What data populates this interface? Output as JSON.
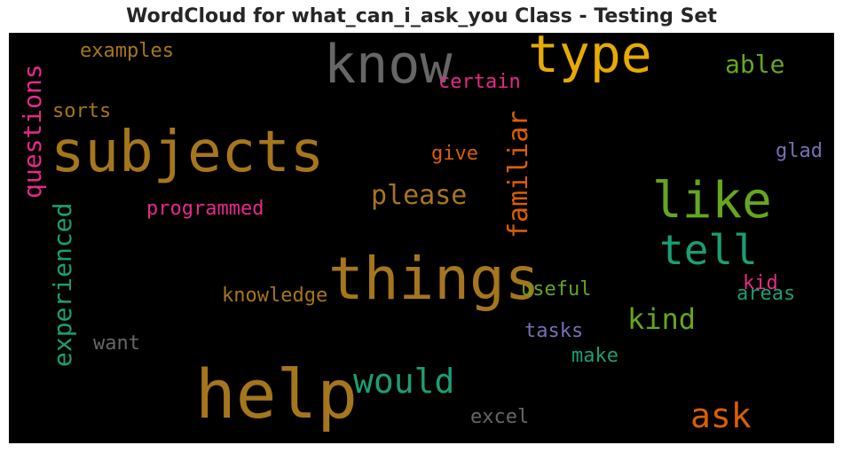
{
  "title": "WordCloud for what_can_i_ask_you Class - Testing Set",
  "words": {
    "help": {
      "text": "help",
      "color": "#a6761d"
    },
    "things": {
      "text": "things",
      "color": "#a6761d"
    },
    "subjects": {
      "text": "subjects",
      "color": "#a6761d"
    },
    "know": {
      "text": "know",
      "color": "#666666"
    },
    "type": {
      "text": "type",
      "color": "#e6ab02"
    },
    "like": {
      "text": "like",
      "color": "#66a61e"
    },
    "tell": {
      "text": "tell",
      "color": "#1b9e77"
    },
    "questions": {
      "text": "questions",
      "color": "#e7298a"
    },
    "experienced": {
      "text": "experienced",
      "color": "#1b9e77"
    },
    "familiar": {
      "text": "familiar",
      "color": "#d95f02"
    },
    "would": {
      "text": "would",
      "color": "#1b9e77"
    },
    "ask": {
      "text": "ask",
      "color": "#d95f02"
    },
    "kind": {
      "text": "kind",
      "color": "#66a61e"
    },
    "please": {
      "text": "please",
      "color": "#a6761d"
    },
    "able": {
      "text": "able",
      "color": "#66a61e"
    },
    "certain": {
      "text": "certain",
      "color": "#e7298a"
    },
    "examples": {
      "text": "examples",
      "color": "#a6761d"
    },
    "sorts": {
      "text": "sorts",
      "color": "#a6761d"
    },
    "give": {
      "text": "give",
      "color": "#d95f02"
    },
    "glad": {
      "text": "glad",
      "color": "#7570b3"
    },
    "programmed": {
      "text": "programmed",
      "color": "#e7298a"
    },
    "knowledge": {
      "text": "knowledge",
      "color": "#a6761d"
    },
    "useful": {
      "text": "useful",
      "color": "#66a61e"
    },
    "kid": {
      "text": "kid",
      "color": "#e7298a"
    },
    "areas": {
      "text": "areas",
      "color": "#1b9e77"
    },
    "want": {
      "text": "want",
      "color": "#666666"
    },
    "tasks": {
      "text": "tasks",
      "color": "#7570b3"
    },
    "make": {
      "text": "make",
      "color": "#1b9e77"
    },
    "excel": {
      "text": "excel",
      "color": "#666666"
    }
  }
}
